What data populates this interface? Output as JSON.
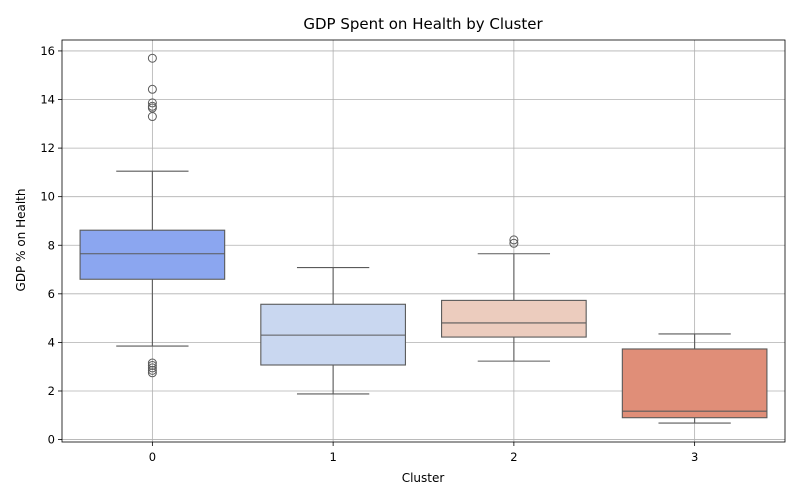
{
  "chart_data": {
    "type": "box",
    "title": "GDP Spent on Health by Cluster",
    "xlabel": "Cluster",
    "ylabel": "GDP % on Health",
    "categories": [
      "0",
      "1",
      "2",
      "3"
    ],
    "ylim": [
      -0.1,
      16.45
    ],
    "yticks": [
      "0",
      "2",
      "4",
      "6",
      "8",
      "10",
      "12",
      "14",
      "16"
    ],
    "ytick_values": [
      0,
      2,
      4,
      6,
      8,
      10,
      12,
      14,
      16
    ],
    "grid": true,
    "legend": "none",
    "boxes": [
      {
        "category": "0",
        "color": "#8BA6F0",
        "whislo": 3.85,
        "q1": 6.6,
        "med": 7.65,
        "q3": 8.62,
        "whishi": 11.05,
        "fliers": [
          15.7,
          14.42,
          13.86,
          13.72,
          13.65,
          13.3,
          3.15,
          3.05,
          2.95,
          2.85,
          2.75
        ]
      },
      {
        "category": "1",
        "color": "#C9D7F0",
        "whislo": 1.88,
        "q1": 3.07,
        "med": 4.3,
        "q3": 5.57,
        "whishi": 7.08,
        "fliers": []
      },
      {
        "category": "2",
        "color": "#ECCCBE",
        "whislo": 3.23,
        "q1": 4.22,
        "med": 4.8,
        "q3": 5.73,
        "whishi": 7.65,
        "fliers": [
          8.22,
          8.08
        ]
      },
      {
        "category": "3",
        "color": "#E08E78",
        "whislo": 0.68,
        "q1": 0.9,
        "med": 1.17,
        "q3": 3.73,
        "whishi": 4.35,
        "fliers": []
      }
    ]
  }
}
